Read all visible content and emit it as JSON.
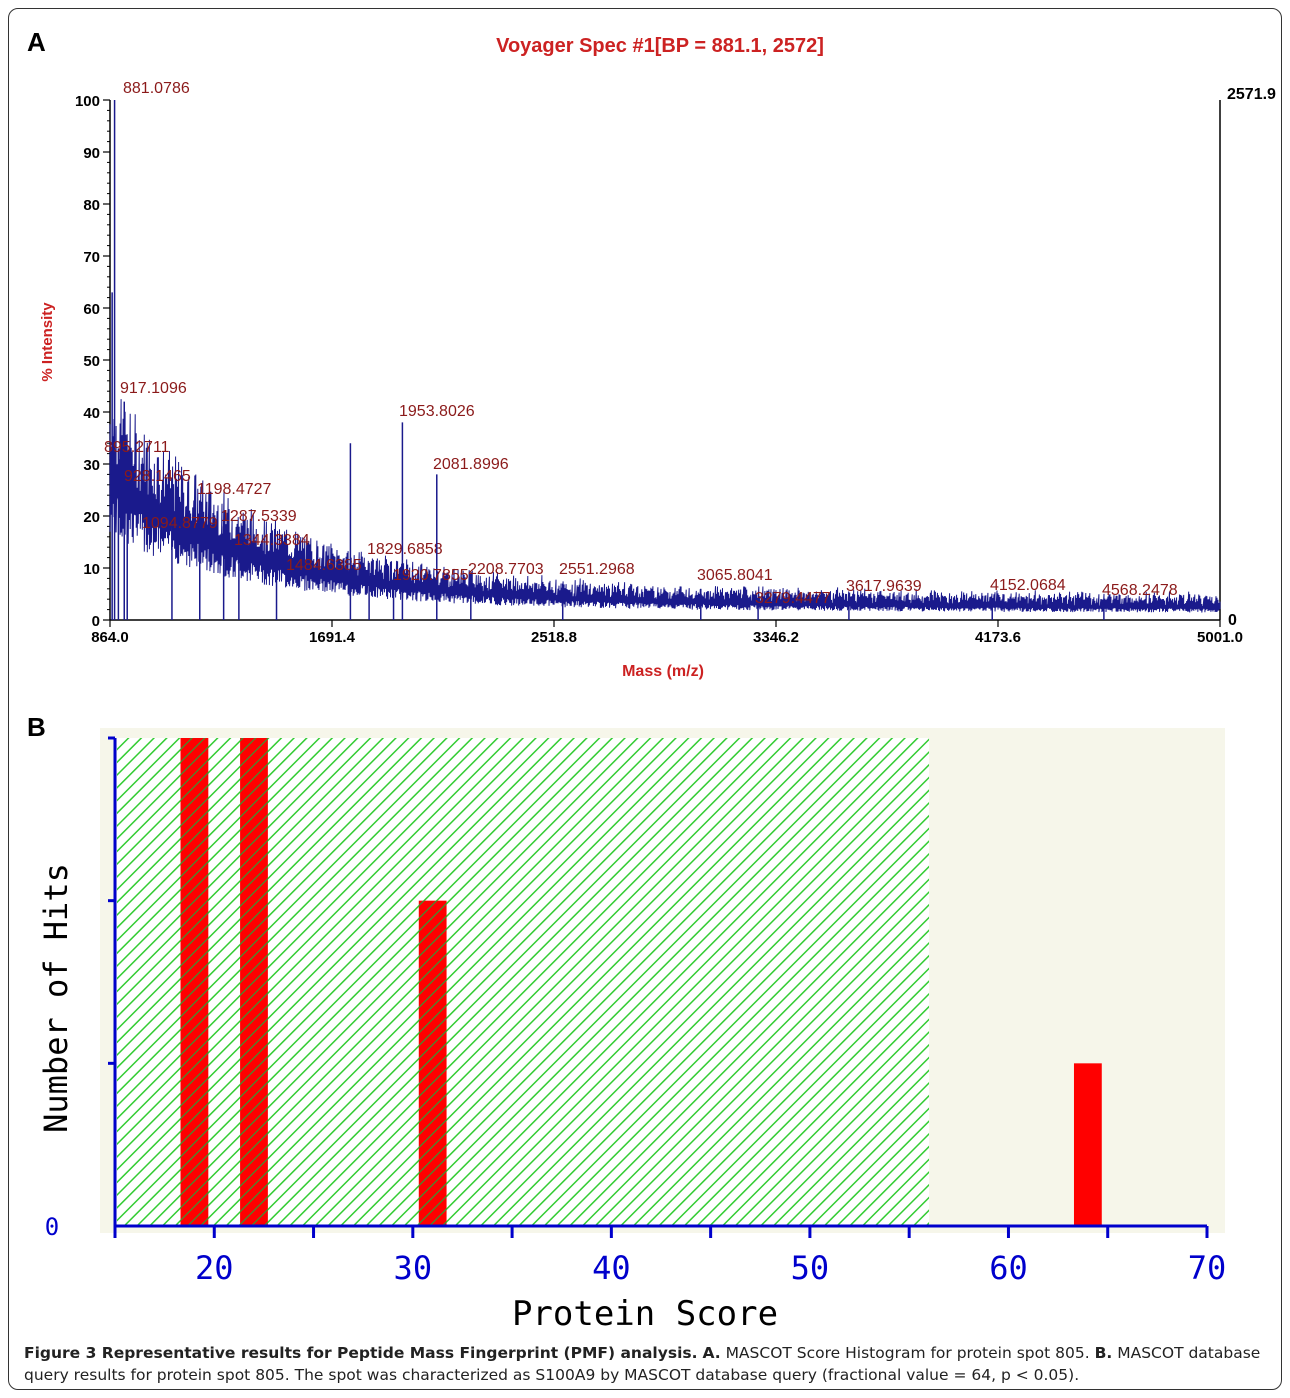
{
  "panels": {
    "a": "A",
    "b": "B"
  },
  "chart_data": [
    {
      "type": "line",
      "title": "Voyager Spec #1[BP = 881.1, 2572]",
      "xlabel": "Mass (m/z)",
      "ylabel": "% Intensity",
      "xlim": [
        864.0,
        5001.0
      ],
      "ylim": [
        0,
        100
      ],
      "x_ticks": [
        "864.0",
        "1691.4",
        "2518.8",
        "3346.2",
        "4173.6",
        "5001.0"
      ],
      "y_ticks": [
        "0",
        "10",
        "20",
        "30",
        "40",
        "50",
        "60",
        "70",
        "80",
        "90",
        "100"
      ],
      "right_axis_labels": {
        "top": "2571.9",
        "bottom": "0"
      },
      "peaks": [
        {
          "mz": 881.0786,
          "intensity": 100,
          "label": "881.0786"
        },
        {
          "mz": 917.1096,
          "intensity": 42,
          "label": "917.1096"
        },
        {
          "mz": 895.2711,
          "intensity": 33,
          "label": "895.2711"
        },
        {
          "mz": 928.1465,
          "intensity": 26,
          "label": "928.1465"
        },
        {
          "mz": 1198.4727,
          "intensity": 23,
          "label": "1198.4727"
        },
        {
          "mz": 1287.5339,
          "intensity": 18,
          "label": "1287.5339"
        },
        {
          "mz": 1344.3384,
          "intensity": 14,
          "label": "1344.3384"
        },
        {
          "mz": 1094.8779,
          "intensity": 20,
          "label": "1094.8779"
        },
        {
          "mz": 1484.6385,
          "intensity": 10,
          "label": "1484.6385"
        },
        {
          "mz": 1829.6858,
          "intensity": 11,
          "label": "1829.6858"
        },
        {
          "mz": 1953.8026,
          "intensity": 38,
          "label": "1953.8026"
        },
        {
          "mz": 1760.0,
          "intensity": 34,
          "label": ""
        },
        {
          "mz": 2081.8996,
          "intensity": 28,
          "label": "2081.8996"
        },
        {
          "mz": 1920.7855,
          "intensity": 8,
          "label": "1920.7855"
        },
        {
          "mz": 2208.7703,
          "intensity": 7,
          "label": "2208.7703"
        },
        {
          "mz": 2551.2968,
          "intensity": 7,
          "label": "2551.2968"
        },
        {
          "mz": 3065.8041,
          "intensity": 6,
          "label": "3065.8041"
        },
        {
          "mz": 3279.4477,
          "intensity": 3,
          "label": "3279.4477"
        },
        {
          "mz": 3617.9639,
          "intensity": 4,
          "label": "3617.9639"
        },
        {
          "mz": 4152.0684,
          "intensity": 4,
          "label": "4152.0684"
        },
        {
          "mz": 4568.2478,
          "intensity": 3,
          "label": "4568.2478"
        }
      ],
      "colors": {
        "trace": "#1a1a8c",
        "label": "#8b1a1a",
        "title": "#cc2222"
      }
    },
    {
      "type": "bar",
      "xlabel": "Protein Score",
      "ylabel": "Number of Hits",
      "xlim": [
        15,
        70
      ],
      "x_ticks": [
        "20",
        "30",
        "40",
        "50",
        "60",
        "70"
      ],
      "y_ticks": [
        "0"
      ],
      "bars": [
        {
          "score": 19,
          "hits": 3
        },
        {
          "score": 22,
          "hits": 3
        },
        {
          "score": 31,
          "hits": 2
        },
        {
          "score": 64,
          "hits": 1
        }
      ],
      "ylim": [
        0,
        3
      ],
      "threshold_score": 56,
      "colors": {
        "bar": "#ff0000",
        "hatch_green": "#33cc33",
        "axis": "#0000cc"
      }
    }
  ],
  "caption": {
    "title": "Figure 3 Representative results for Peptide Mass Fingerprint (PMF) analysis.",
    "a_label": "A.",
    "a_text": "MASCOT Score Histogram for protein spot 805.",
    "b_label": "B.",
    "b_text": "MASCOT database query results for protein spot 805. The spot was characterized as S100A9 by MASCOT database query (fractional value = 64, p < 0.05)."
  }
}
